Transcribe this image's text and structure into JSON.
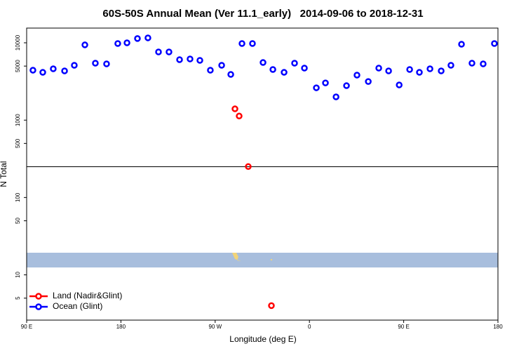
{
  "chart_data": {
    "type": "scatter",
    "title": "60S-50S Annual Mean (Ver 11.1_early)   2014-09-06 to 2018-12-31",
    "xlabel": "Longitude (deg E)",
    "ylabel": "N Total",
    "log_y": true,
    "xlim": [
      90,
      540
    ],
    "ylim": [
      2.6,
      15500
    ],
    "xticks": [
      {
        "value": 90,
        "label": "90 E"
      },
      180,
      {
        "value": 270,
        "label": "90 W"
      },
      {
        "value": 360,
        "label": "0"
      },
      {
        "value": 450,
        "label": "90 E"
      },
      {
        "value": 540,
        "label": "180"
      }
    ],
    "yticks": [
      5,
      10,
      50,
      100,
      500,
      1000,
      5000,
      10000
    ],
    "hline": 250,
    "legend": "bottom-left",
    "series": [
      {
        "name": "Land (Nadir&Glint)",
        "color": "#ff0000",
        "x": [
          288.9,
          292.9,
          301.6,
          323.7
        ],
        "values": [
          1400,
          1130,
          251,
          4
        ]
      },
      {
        "name": "Ocean (Glint)",
        "color": "#0000ff",
        "x": [
          96.0,
          105.4,
          115.4,
          126.2,
          135.5,
          145.6,
          155.6,
          166.3,
          177.0,
          185.8,
          195.8,
          205.8,
          215.9,
          225.9,
          236.0,
          246.0,
          255.4,
          265.4,
          276.2,
          284.9,
          295.6,
          305.6,
          315.7,
          325.1,
          335.8,
          345.8,
          355.2,
          366.6,
          375.3,
          385.4,
          395.4,
          405.4,
          416.2,
          426.2,
          435.6,
          445.7,
          455.7,
          465.0,
          475.1,
          485.8,
          495.1,
          505.2,
          515.2,
          525.9,
          536.6
        ],
        "values": [
          4420,
          4150,
          4610,
          4330,
          5120,
          9400,
          5450,
          5340,
          9790,
          10000,
          11350,
          11580,
          7620,
          7620,
          6050,
          6180,
          5930,
          4420,
          5120,
          3900,
          9790,
          9790,
          5560,
          4520,
          4150,
          5450,
          4710,
          2620,
          3030,
          2000,
          2790,
          3820,
          3160,
          4710,
          4330,
          2850,
          4520,
          4150,
          4610,
          4330,
          5120,
          9590,
          5450,
          5340,
          9790
        ]
      }
    ]
  }
}
